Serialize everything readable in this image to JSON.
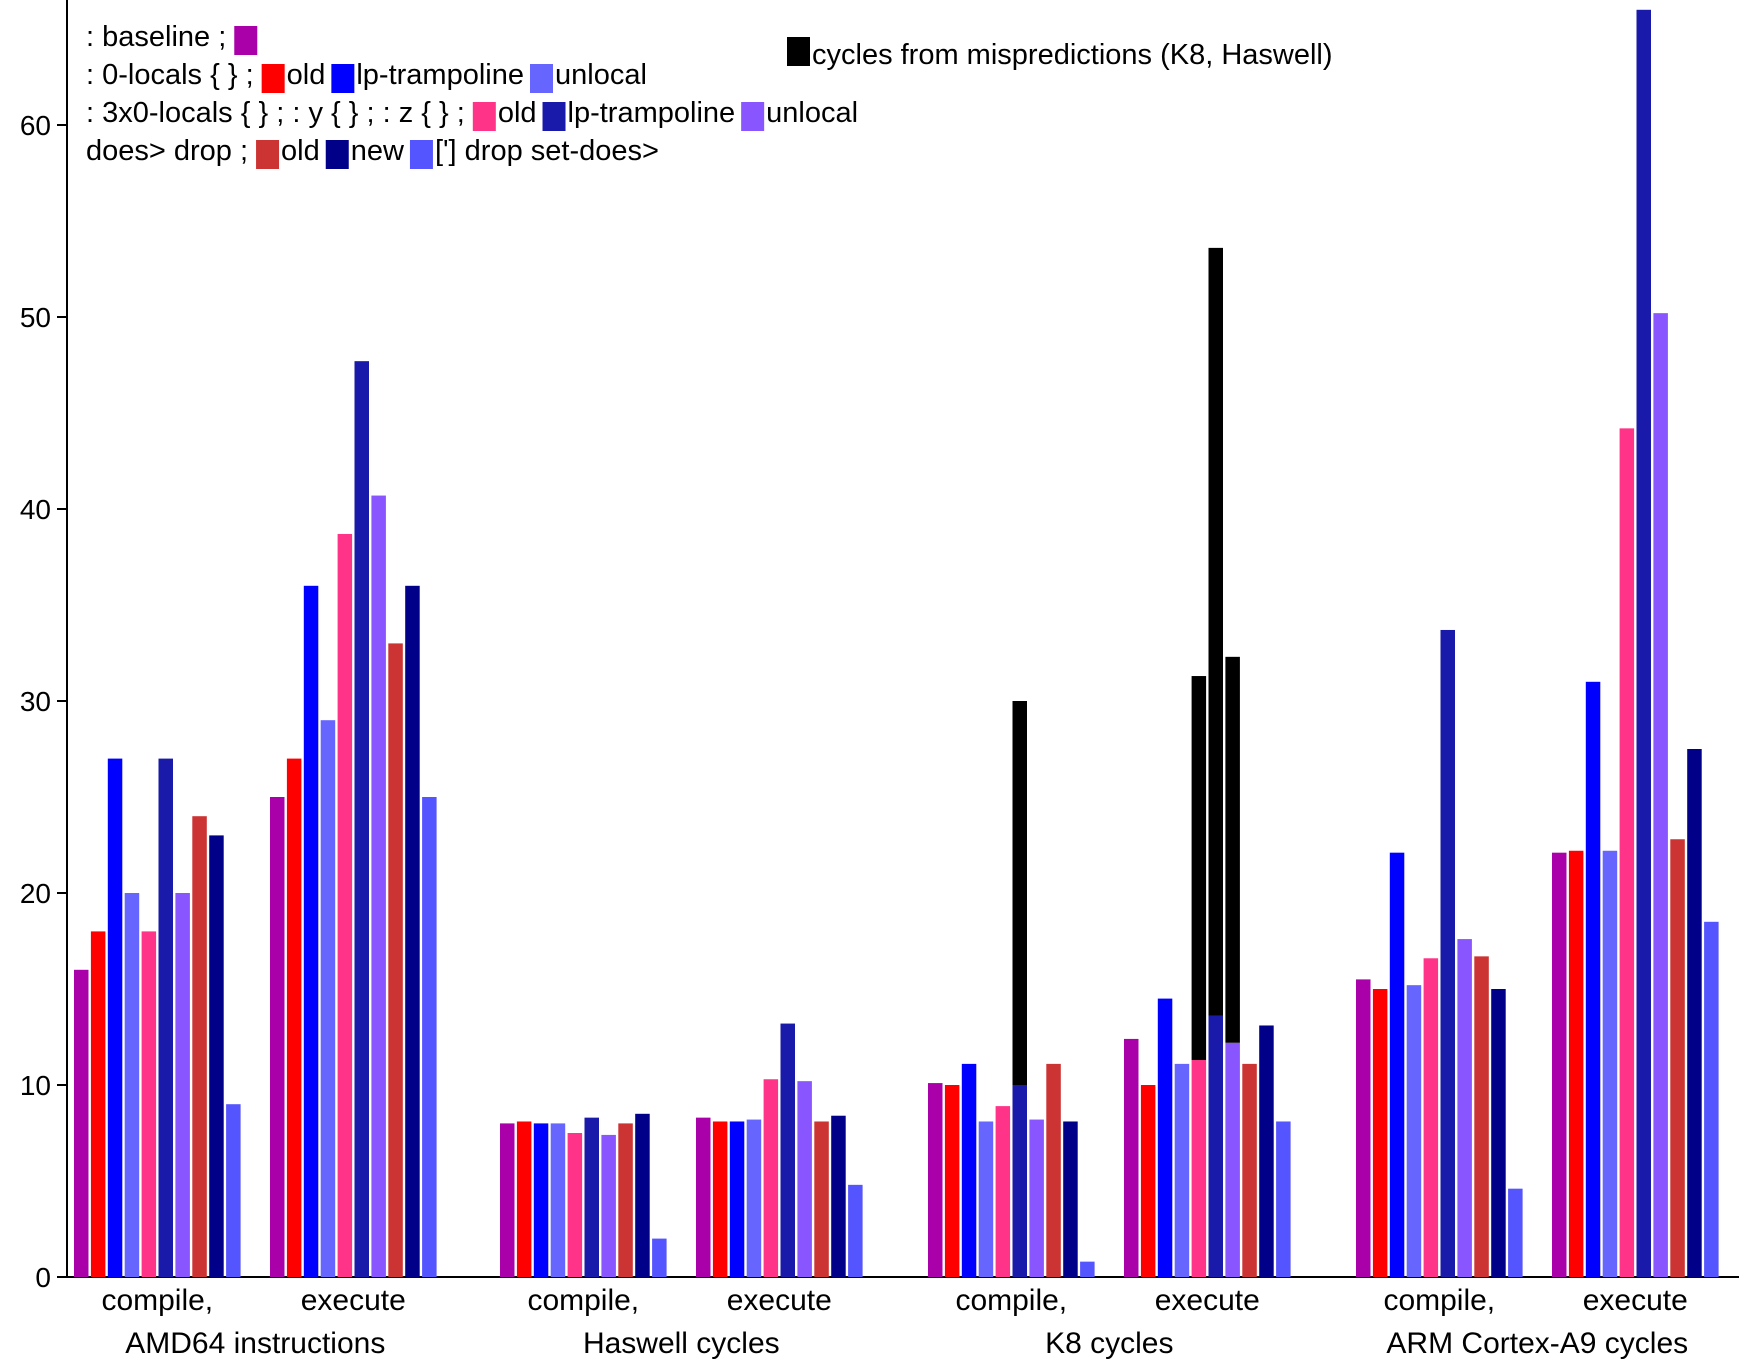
{
  "chart_data": {
    "type": "bar",
    "title": "",
    "xlabel": "",
    "ylabel": "",
    "ylim": [
      0,
      66
    ],
    "y_ticks": [
      0,
      10,
      20,
      30,
      40,
      50,
      60
    ],
    "grid": false,
    "legend_position": "top-left",
    "groups": [
      {
        "label_top": "compile,",
        "label_bottom": "AMD64 instructions"
      },
      {
        "label_top": "execute",
        "label_bottom": ""
      },
      {
        "label_top": "compile,",
        "label_bottom": "Haswell cycles"
      },
      {
        "label_top": "execute",
        "label_bottom": ""
      },
      {
        "label_top": "compile,",
        "label_bottom": "K8 cycles"
      },
      {
        "label_top": "execute",
        "label_bottom": ""
      },
      {
        "label_top": "compile,",
        "label_bottom": "ARM Cortex-A9 cycles"
      },
      {
        "label_top": "execute",
        "label_bottom": ""
      }
    ],
    "series": [
      {
        "color": "#aa00aa"
      },
      {
        "color": "#ff0000"
      },
      {
        "color": "#0000ff"
      },
      {
        "color": "#6666ff"
      },
      {
        "color": "#ff3388"
      },
      {
        "color": "#1a1aaa"
      },
      {
        "color": "#8855ff"
      },
      {
        "color": "#cc3333"
      },
      {
        "color": "#000088"
      },
      {
        "color": "#5555ff"
      }
    ],
    "values": [
      [
        16,
        18,
        27,
        20,
        18,
        27,
        20,
        24,
        23,
        9
      ],
      [
        25,
        27,
        36,
        29,
        38.7,
        47.7,
        40.7,
        33,
        36,
        25
      ],
      [
        8,
        8.1,
        8,
        8,
        7.5,
        8.3,
        7.4,
        8,
        8.5,
        2
      ],
      [
        8.3,
        8.1,
        8.1,
        8.2,
        10.3,
        13.2,
        10.2,
        8.1,
        8.4,
        4.8
      ],
      [
        10.1,
        10,
        11.1,
        8.1,
        8.9,
        10,
        8.2,
        11.1,
        8.1,
        0.8
      ],
      [
        12.4,
        10,
        14.5,
        11.1,
        11.3,
        13.6,
        12.2,
        11.1,
        13.1,
        8.1
      ],
      [
        15.5,
        15,
        22.1,
        15.2,
        16.6,
        33.7,
        17.6,
        16.7,
        15,
        4.6
      ],
      [
        22.1,
        22.2,
        31,
        22.2,
        44.2,
        66,
        50.2,
        22.8,
        27.5,
        18.5
      ]
    ],
    "mispredictions": [
      [],
      [],
      [],
      [],
      [
        {
          "series": 5,
          "top": 30
        }
      ],
      [
        {
          "series": 4,
          "top": 31.3
        },
        {
          "series": 5,
          "top": 53.6
        },
        {
          "series": 6,
          "top": 32.3
        }
      ],
      [],
      []
    ],
    "legend": {
      "rows": [
        {
          "label": ": baseline ;",
          "entries": [
            {
              "series": 0,
              "text": ""
            }
          ]
        },
        {
          "label": ": 0-locals { } ;",
          "entries": [
            {
              "series": 1,
              "text": "old"
            },
            {
              "series": 2,
              "text": "lp-trampoline"
            },
            {
              "series": 3,
              "text": "unlocal"
            }
          ]
        },
        {
          "label": ": 3x0-locals { } ; : y { } ; : z { } ;",
          "entries": [
            {
              "series": 4,
              "text": "old"
            },
            {
              "series": 5,
              "text": "lp-trampoline"
            },
            {
              "series": 6,
              "text": "unlocal"
            }
          ]
        },
        {
          "label": "does> drop ;",
          "entries": [
            {
              "series": 7,
              "text": "old"
            },
            {
              "series": 8,
              "text": "new"
            },
            {
              "series": 9,
              "text": "['] drop set-does>"
            }
          ]
        }
      ],
      "mispredictions_entry": {
        "color": "#000000",
        "text": "cycles from mispredictions (K8, Haswell)"
      }
    }
  }
}
